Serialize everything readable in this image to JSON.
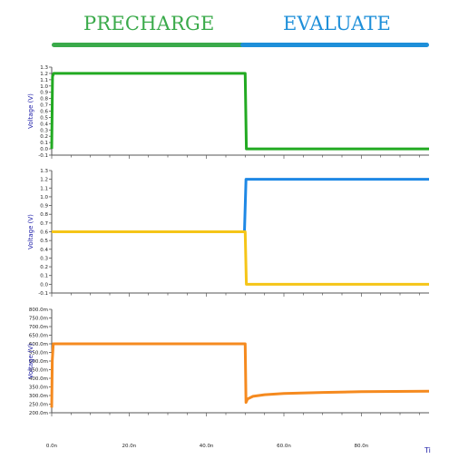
{
  "header": {
    "phases": [
      {
        "label": "PRECHARGE",
        "color": "#3aaa4a"
      },
      {
        "label": "EVALUATE",
        "color": "#1e8fd9"
      }
    ]
  },
  "colors": {
    "green": "#22aa22",
    "blue": "#1e88e5",
    "yellow": "#f5c518",
    "orange": "#f58a1f",
    "axis": "#555555",
    "grid_frame": "#444444",
    "ylabel": "#2222aa"
  },
  "x_axis": {
    "tick_labels": [
      "0.0n",
      "20.0n",
      "40.0n",
      "60.0n",
      "80.0n"
    ],
    "tick_values": [
      0,
      20,
      40,
      60,
      80
    ],
    "range": [
      0,
      97.5
    ],
    "label": "Ti"
  },
  "chart_data": [
    {
      "type": "line",
      "ylabel": "Voltage (V)",
      "ylim": [
        -0.1,
        1.3
      ],
      "y_ticks": [
        -0.1,
        0.0,
        0.1,
        0.2,
        0.3,
        0.4,
        0.5,
        0.6,
        0.7,
        0.8,
        0.9,
        1.0,
        1.1,
        1.2,
        1.3
      ],
      "y_tick_labels": [
        "-0.1",
        "0.0",
        "0.1",
        "0.2",
        "0.3",
        "0.4",
        "0.5",
        "0.6",
        "0.7",
        "0.8",
        "0.9",
        "1.0",
        "1.1",
        "1.2",
        "1.3"
      ],
      "series": [
        {
          "color": "#22aa22",
          "x": [
            0,
            0.2,
            0.5,
            50,
            50.3,
            97.5
          ],
          "y": [
            0.0,
            1.15,
            1.2,
            1.2,
            0.0,
            0.0
          ]
        }
      ]
    },
    {
      "type": "line",
      "ylabel": "Voltage (V)",
      "ylim": [
        -0.1,
        1.3
      ],
      "y_ticks": [
        -0.1,
        0.0,
        0.1,
        0.2,
        0.3,
        0.4,
        0.5,
        0.6,
        0.7,
        0.8,
        0.9,
        1.0,
        1.1,
        1.2,
        1.3
      ],
      "y_tick_labels": [
        "-0.1",
        "0.0",
        "0.1",
        "0.2",
        "0.3",
        "0.4",
        "0.5",
        "0.6",
        "0.7",
        "0.8",
        "0.9",
        "1.0",
        "1.1",
        "1.2",
        "1.3"
      ],
      "series": [
        {
          "color": "#1e88e5",
          "x": [
            49.8,
            50.2,
            97.5
          ],
          "y": [
            0.6,
            1.2,
            1.2
          ]
        },
        {
          "color": "#f5c518",
          "x": [
            0,
            50,
            50.3,
            97.5
          ],
          "y": [
            0.6,
            0.6,
            0.0,
            0.0
          ]
        }
      ]
    },
    {
      "type": "line",
      "ylabel": "Voltage (V)",
      "ylim": [
        0.2,
        0.8
      ],
      "y_ticks": [
        0.2,
        0.25,
        0.3,
        0.35,
        0.4,
        0.45,
        0.5,
        0.55,
        0.6,
        0.65,
        0.7,
        0.75,
        0.8
      ],
      "y_tick_labels": [
        "200.0m",
        "250.0m",
        "300.0m",
        "350.0m",
        "400.0m",
        "450.0m",
        "500.0m",
        "550.0m",
        "600.0m",
        "650.0m",
        "700.0m",
        "750.0m",
        "800.0m"
      ],
      "series": [
        {
          "color": "#f58a1f",
          "x": [
            0,
            0.15,
            0.4,
            50,
            50.2,
            50.6,
            52,
            55,
            60,
            70,
            80,
            97.5
          ],
          "y": [
            0.23,
            0.5,
            0.6,
            0.6,
            0.26,
            0.28,
            0.295,
            0.305,
            0.312,
            0.318,
            0.322,
            0.325
          ]
        }
      ]
    }
  ]
}
